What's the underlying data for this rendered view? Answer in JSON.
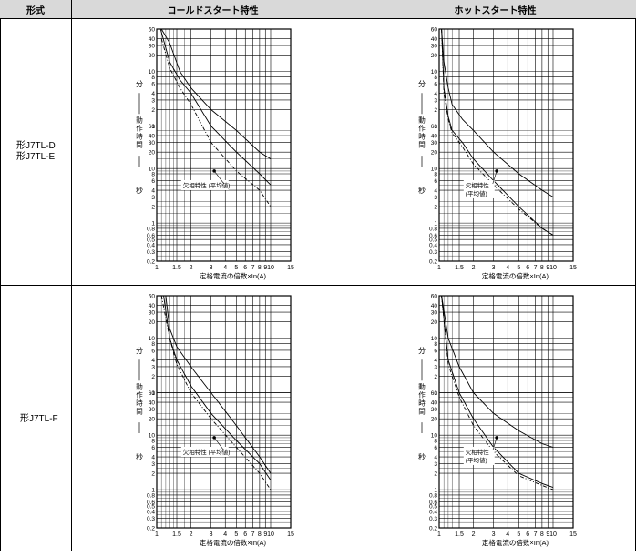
{
  "header": {
    "col_model": "形式",
    "col_cold": "コールドスタート特性",
    "col_hot": "ホットスタート特性"
  },
  "rows": [
    {
      "model_lines": [
        "形J7TL-D",
        "形J7TL-E"
      ]
    },
    {
      "model_lines": [
        "形J7TL-F"
      ]
    }
  ],
  "chart_common": {
    "y_ticks_minutes": [
      "60",
      "40",
      "30",
      "20",
      "10",
      "8",
      "6",
      "4",
      "3",
      "2",
      "1"
    ],
    "y_ticks_seconds": [
      "60",
      "40",
      "30",
      "20",
      "10",
      "8",
      "6",
      "4",
      "3",
      "2",
      "1",
      "0.8",
      "0.6",
      "0.5",
      "0.4",
      "0.3",
      "0.2"
    ],
    "y_unit_minutes": "分",
    "y_unit_seconds": "秒",
    "y_label": "動作時間",
    "x_ticks": [
      "1",
      "1.5",
      "2",
      "3",
      "4",
      "5",
      "6",
      "7",
      "8",
      "9",
      "10",
      "15"
    ],
    "x_label": "定格電流の倍数×In(A)"
  },
  "chart_data": [
    {
      "type": "line",
      "title": "",
      "xlabel": "定格電流の倍数×In(A)",
      "ylabel": "動作時間",
      "xscale": "log",
      "yscale": "log",
      "xlim": [
        1,
        15
      ],
      "ylim_seconds": [
        0.2,
        3600
      ],
      "annotation": "欠相特性 (平均値)",
      "series": [
        {
          "style": "solid",
          "x": [
            1.1,
            1.3,
            1.6,
            2,
            3,
            5,
            8,
            10
          ],
          "y": [
            3600,
            2000,
            600,
            300,
            120,
            50,
            20,
            15
          ]
        },
        {
          "style": "solid",
          "x": [
            1.08,
            1.3,
            1.6,
            2,
            3,
            5,
            8,
            10
          ],
          "y": [
            3600,
            900,
            420,
            240,
            60,
            20,
            8,
            5
          ]
        },
        {
          "style": "dashed",
          "x": [
            1.1,
            1.3,
            1.6,
            2,
            3,
            5,
            8,
            10
          ],
          "y": [
            2400,
            700,
            300,
            150,
            30,
            9,
            4,
            2
          ]
        }
      ]
    },
    {
      "type": "line",
      "title": "",
      "xlabel": "定格電流の倍数×In(A)",
      "ylabel": "動作時間",
      "xscale": "log",
      "yscale": "log",
      "xlim": [
        1,
        15
      ],
      "ylim_seconds": [
        0.2,
        3600
      ],
      "annotation": "欠相特性\n(平均値)",
      "series": [
        {
          "style": "solid",
          "x": [
            1.05,
            1.1,
            1.2,
            1.3,
            1.6,
            2,
            3,
            5,
            8,
            10
          ],
          "y": [
            3600,
            900,
            300,
            150,
            80,
            50,
            20,
            8,
            4,
            3
          ]
        },
        {
          "style": "solid",
          "x": [
            1.05,
            1.1,
            1.2,
            1.3,
            1.6,
            2,
            3,
            5,
            8,
            10
          ],
          "y": [
            3600,
            300,
            90,
            50,
            30,
            15,
            6,
            2,
            0.8,
            0.6
          ]
        },
        {
          "style": "dashed",
          "x": [
            1.05,
            1.1,
            1.2,
            1.3,
            1.6,
            2,
            3,
            5,
            8,
            10
          ],
          "y": [
            3600,
            250,
            80,
            45,
            25,
            12,
            5,
            1.8,
            0.8,
            0.6
          ]
        }
      ]
    },
    {
      "type": "line",
      "title": "",
      "xlabel": "定格電流の倍数×In(A)",
      "ylabel": "動作時間",
      "xscale": "log",
      "yscale": "log",
      "xlim": [
        1,
        15
      ],
      "ylim_seconds": [
        0.2,
        3600
      ],
      "annotation": "欠相特性 (平均値)",
      "series": [
        {
          "style": "solid",
          "x": [
            1.2,
            1.3,
            1.5,
            2,
            3,
            5,
            8,
            10
          ],
          "y": [
            3600,
            900,
            420,
            180,
            60,
            15,
            4,
            2
          ]
        },
        {
          "style": "solid",
          "x": [
            1.15,
            1.3,
            1.5,
            2,
            3,
            5,
            8,
            10
          ],
          "y": [
            3600,
            600,
            240,
            80,
            25,
            8,
            3,
            1.5
          ]
        },
        {
          "style": "dashed",
          "x": [
            1.1,
            1.3,
            1.5,
            2,
            3,
            5,
            8,
            10
          ],
          "y": [
            3600,
            600,
            200,
            60,
            20,
            6,
            2,
            1
          ]
        }
      ]
    },
    {
      "type": "line",
      "title": "",
      "xlabel": "定格電流の倍数×In(A)",
      "ylabel": "動作時間",
      "xscale": "log",
      "yscale": "log",
      "xlim": [
        1,
        15
      ],
      "ylim_seconds": [
        0.2,
        3600
      ],
      "annotation": "欠相特性\n(平均値)",
      "series": [
        {
          "style": "solid",
          "x": [
            1.05,
            1.2,
            1.5,
            2,
            3,
            5,
            8,
            10
          ],
          "y": [
            3600,
            600,
            180,
            60,
            25,
            12,
            7,
            6
          ]
        },
        {
          "style": "solid",
          "x": [
            1.05,
            1.2,
            1.5,
            2,
            3,
            5,
            8,
            10
          ],
          "y": [
            3600,
            240,
            60,
            20,
            6,
            2,
            1.3,
            1.1
          ]
        },
        {
          "style": "dashed",
          "x": [
            1.05,
            1.2,
            1.5,
            2,
            3,
            5,
            8,
            10
          ],
          "y": [
            3600,
            200,
            50,
            15,
            5,
            1.8,
            1.2,
            1
          ]
        }
      ]
    }
  ]
}
